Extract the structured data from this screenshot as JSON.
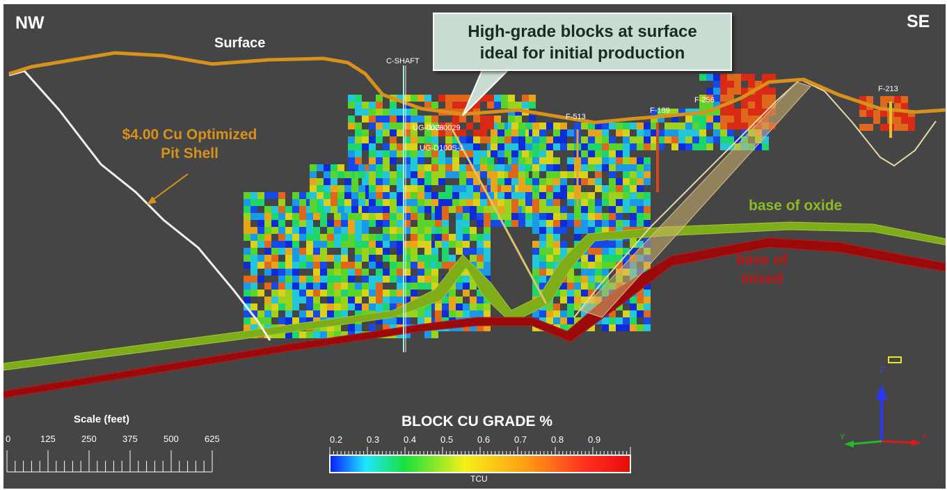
{
  "view": {
    "left_label": "NW",
    "right_label": "SE"
  },
  "labels": {
    "surface": "Surface",
    "pit_shell_line1": "$4.00 Cu Optimized",
    "pit_shell_line2": "Pit Shell",
    "base_oxide": "base of oxide",
    "base_mixed_line1": "base of",
    "base_mixed_line2": "mixed",
    "callout_line1": "High-grade blocks at surface",
    "callout_line2": "ideal for initial production"
  },
  "drillholes": [
    {
      "name": "C-SHAFT"
    },
    {
      "name": "UG-0028"
    },
    {
      "name": "UG-0029"
    },
    {
      "name": "UG-D100S-1"
    },
    {
      "name": "F-513"
    },
    {
      "name": "F-189"
    },
    {
      "name": "F-256"
    },
    {
      "name": "F-213"
    }
  ],
  "scale": {
    "title": "Scale (feet)",
    "ticks": [
      "0",
      "125",
      "250",
      "375",
      "500",
      "625"
    ]
  },
  "legend": {
    "title": "BLOCK CU GRADE %",
    "ticks": [
      "0.2",
      "0.3",
      "0.4",
      "0.5",
      "0.6",
      "0.7",
      "0.8",
      "0.9"
    ],
    "unit": "TCU"
  },
  "axes": {
    "z": "Z",
    "y": "Y",
    "x": "X"
  },
  "colors": {
    "background": "#454545",
    "surface": "#d8921c",
    "pit_shell": "#f4f4f4",
    "oxide": "#8ab61c",
    "mixed": "#b51010",
    "pit_label": "#d8921c",
    "oxide_label": "#8dbb26",
    "mixed_label": "#c01414"
  }
}
